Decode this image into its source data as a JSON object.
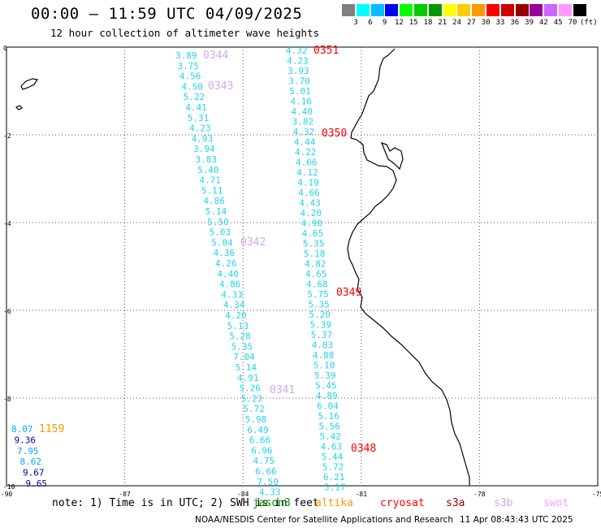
{
  "title": "00:00 – 11:59 UTC 04/09/2025",
  "subtitle": "12 hour collection of altimeter wave heights",
  "colorbar": {
    "unit": "(ft)",
    "colors": [
      "#808080",
      "#00ffff",
      "#00bfff",
      "#0000ff",
      "#00ff00",
      "#00cc00",
      "#009900",
      "#ffff00",
      "#ffcc00",
      "#ff9900",
      "#ff0000",
      "#cc0000",
      "#990000",
      "#990099",
      "#cc66ff",
      "#ff99ff",
      "#000000"
    ],
    "labels": [
      "3",
      "6",
      "9",
      "12",
      "15",
      "18",
      "21",
      "24",
      "27",
      "30",
      "33",
      "36",
      "39",
      "42",
      "45",
      "70"
    ]
  },
  "axes": {
    "lon_ticks": [
      "-90",
      "-87",
      "-84",
      "-81",
      "-78",
      "-75"
    ],
    "lat_ticks": [
      "0",
      "-2",
      "-4",
      "-6",
      "-8",
      "-10"
    ]
  },
  "tracks": [
    {
      "pass": "0344",
      "color": "#ccaaee"
    },
    {
      "pass": "0343",
      "color": "#ccaaee"
    },
    {
      "pass": "0342",
      "color": "#ccaaee"
    },
    {
      "pass": "0341",
      "color": "#ccaaee"
    },
    {
      "pass": "0351",
      "color": "#ff0000"
    },
    {
      "pass": "0350",
      "color": "#ff0000"
    },
    {
      "pass": "0349",
      "color": "#ff0000"
    },
    {
      "pass": "0348",
      "color": "#ff0000"
    },
    {
      "pass": "1159",
      "color": "#ff9900"
    }
  ],
  "track_a_values": [
    "3.89",
    "3.75",
    "4.56",
    "4.50",
    "5.22",
    "4.41",
    "5.31",
    "4.23",
    "4.93",
    "3.94",
    "3.83",
    "5.40",
    "4.71",
    "5.11",
    "4.86",
    "5.14",
    "5.50",
    "5.03",
    "5.04",
    "4.36",
    "4.26",
    "4.40",
    "4.86",
    "4.33",
    "4.34",
    "4.20",
    "5.13",
    "5.28",
    "5.35",
    "7.04",
    "5.14",
    "4.91",
    "5.26",
    "5.22",
    "5.72",
    "5.98",
    "6.49",
    "6.66",
    "6.96",
    "4.75",
    "6.66",
    "7.50",
    "4.33"
  ],
  "track_b_values": [
    "4.32",
    "4.23",
    "3.93",
    "3.70",
    "5.01",
    "4.16",
    "4.40",
    "3.82",
    "4.32",
    "4.44",
    "4.22",
    "4.66",
    "4.12",
    "4.19",
    "4.66",
    "4.43",
    "4.20",
    "4.90",
    "4.65",
    "5.35",
    "5.18",
    "4.82",
    "4.65",
    "4.68",
    "5.75",
    "5.35",
    "5.20",
    "5.39",
    "5.37",
    "4.83",
    "4.88",
    "5.10",
    "5.39",
    "5.45",
    "4.89",
    "6.04",
    "5.16",
    "5.56",
    "5.42",
    "4.63",
    "5.44",
    "5.72",
    "6.21",
    "5.17"
  ],
  "track_c_values": [
    "8.07",
    "9.36",
    "7.95",
    "8.62",
    "9.67",
    "9.65"
  ],
  "note": "note: 1) Time is in UTC; 2) SWH is in feet",
  "legend": [
    {
      "label": "jason3",
      "color": "#009900"
    },
    {
      "label": "altika",
      "color": "#ff9900"
    },
    {
      "label": "cryosat",
      "color": "#ff0000"
    },
    {
      "label": "s3a",
      "color": "#990000"
    },
    {
      "label": "s3b",
      "color": "#ccaaee"
    },
    {
      "label": "swot",
      "color": "#ff99ff"
    }
  ],
  "credit": "NOAA/NESDIS Center for Satellite Applications and Research",
  "generated": "11 Apr 08:43:43 UTC 2025"
}
